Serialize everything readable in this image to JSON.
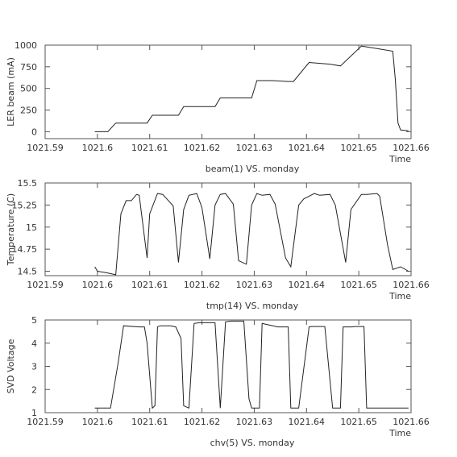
{
  "chart_data": [
    {
      "type": "line",
      "title": "",
      "xlabel": "Time",
      "ylabel": "LER beam (mA)",
      "caption": "beam(1) VS. monday",
      "xlim": [
        1021.59,
        1021.66
      ],
      "ylim": [
        -80,
        1000
      ],
      "xticks": [
        1021.59,
        1021.6,
        1021.61,
        1021.62,
        1021.63,
        1021.64,
        1021.65,
        1021.66
      ],
      "xtick_labels": [
        "1021.59",
        "1021.6",
        "1021.61",
        "1021.62",
        "1021.63",
        "1021.64",
        "1021.65",
        "1021.66"
      ],
      "yticks": [
        0,
        250,
        500,
        750,
        1000
      ],
      "ytick_labels": [
        "0",
        "250",
        "500",
        "750",
        "1000"
      ],
      "grid": false,
      "series": [
        {
          "x": [
            1021.5995,
            1021.601,
            1021.602,
            1021.6035,
            1021.6065,
            1021.6095,
            1021.6105,
            1021.613,
            1021.6155,
            1021.6165,
            1021.6195,
            1021.6225,
            1021.6235,
            1021.6265,
            1021.6295,
            1021.6305,
            1021.6335,
            1021.6365,
            1021.6375,
            1021.6405,
            1021.6445,
            1021.6465,
            1021.6505,
            1021.6535,
            1021.6565,
            1021.657,
            1021.6575,
            1021.658,
            1021.6595
          ],
          "y": [
            0,
            0,
            0,
            100,
            100,
            100,
            190,
            190,
            190,
            290,
            290,
            290,
            390,
            390,
            390,
            590,
            590,
            580,
            580,
            800,
            780,
            760,
            990,
            960,
            930,
            600,
            100,
            20,
            10
          ]
        }
      ]
    },
    {
      "type": "line",
      "title": "",
      "xlabel": "Time",
      "ylabel": "Temperature (C)",
      "caption": "tmp(14) VS. monday",
      "xlim": [
        1021.59,
        1021.66
      ],
      "ylim": [
        14.45,
        15.5
      ],
      "xticks": [
        1021.59,
        1021.6,
        1021.61,
        1021.62,
        1021.63,
        1021.64,
        1021.65,
        1021.66
      ],
      "xtick_labels": [
        "1021.59",
        "1021.6",
        "1021.61",
        "1021.62",
        "1021.63",
        "1021.64",
        "1021.65",
        "1021.66"
      ],
      "yticks": [
        14.5,
        14.75,
        15,
        15.25,
        15.5
      ],
      "ytick_labels": [
        "14.5",
        "14.75",
        "15",
        "15.25",
        "15.5"
      ],
      "grid": false,
      "series": [
        {
          "x": [
            1021.5995,
            1021.6,
            1021.602,
            1021.6035,
            1021.6045,
            1021.6055,
            1021.6065,
            1021.6075,
            1021.608,
            1021.6095,
            1021.61,
            1021.6115,
            1021.6125,
            1021.6145,
            1021.6155,
            1021.6165,
            1021.6175,
            1021.619,
            1021.62,
            1021.6215,
            1021.6225,
            1021.6235,
            1021.6245,
            1021.626,
            1021.627,
            1021.6285,
            1021.6295,
            1021.6305,
            1021.6315,
            1021.633,
            1021.634,
            1021.636,
            1021.637,
            1021.6385,
            1021.6395,
            1021.6415,
            1021.6425,
            1021.6445,
            1021.6455,
            1021.6475,
            1021.6485,
            1021.6505,
            1021.6515,
            1021.6535,
            1021.654,
            1021.6555,
            1021.6565,
            1021.658,
            1021.6595
          ],
          "y": [
            14.55,
            14.5,
            14.48,
            14.46,
            15.15,
            15.3,
            15.3,
            15.37,
            15.36,
            14.65,
            15.15,
            15.38,
            15.37,
            15.24,
            14.6,
            15.2,
            15.36,
            15.38,
            15.22,
            14.64,
            15.25,
            15.37,
            15.38,
            15.26,
            14.62,
            14.58,
            15.25,
            15.38,
            15.36,
            15.37,
            15.26,
            14.65,
            14.55,
            15.25,
            15.32,
            15.38,
            15.36,
            15.37,
            15.25,
            14.6,
            15.2,
            15.37,
            15.37,
            15.38,
            15.35,
            14.8,
            14.52,
            14.55,
            14.5
          ]
        }
      ]
    },
    {
      "type": "line",
      "title": "",
      "xlabel": "Time",
      "ylabel": "SVD Voltage",
      "caption": "chv(5) VS. monday",
      "xlim": [
        1021.59,
        1021.66
      ],
      "ylim": [
        1,
        5
      ],
      "xticks": [
        1021.59,
        1021.6,
        1021.61,
        1021.62,
        1021.63,
        1021.64,
        1021.65,
        1021.66
      ],
      "xtick_labels": [
        "1021.59",
        "1021.6",
        "1021.61",
        "1021.62",
        "1021.63",
        "1021.64",
        "1021.65",
        "1021.66"
      ],
      "yticks": [
        1,
        2,
        3,
        4,
        5
      ],
      "ytick_labels": [
        "1",
        "2",
        "3",
        "4",
        "5"
      ],
      "grid": false,
      "series": [
        {
          "x": [
            1021.5995,
            1021.6025,
            1021.604,
            1021.605,
            1021.608,
            1021.609,
            1021.6095,
            1021.6105,
            1021.611,
            1021.6115,
            1021.612,
            1021.614,
            1021.615,
            1021.616,
            1021.6165,
            1021.6175,
            1021.6185,
            1021.6195,
            1021.622,
            1021.6225,
            1021.6235,
            1021.6245,
            1021.6255,
            1021.628,
            1021.629,
            1021.6295,
            1021.6305,
            1021.631,
            1021.6315,
            1021.6345,
            1021.635,
            1021.6365,
            1021.637,
            1021.6385,
            1021.6405,
            1021.641,
            1021.643,
            1021.6435,
            1021.645,
            1021.6465,
            1021.647,
            1021.6485,
            1021.6495,
            1021.651,
            1021.6515,
            1021.6525,
            1021.6545,
            1021.6555,
            1021.657,
            1021.6595
          ],
          "y": [
            1.2,
            1.2,
            3.2,
            4.75,
            4.7,
            4.7,
            4.0,
            1.2,
            1.3,
            4.7,
            4.75,
            4.75,
            4.7,
            4.2,
            1.3,
            1.2,
            4.85,
            4.88,
            4.88,
            4.88,
            1.2,
            4.92,
            4.95,
            4.95,
            1.6,
            1.2,
            1.2,
            1.2,
            4.85,
            4.7,
            4.7,
            4.7,
            1.2,
            1.2,
            4.7,
            4.72,
            4.72,
            4.72,
            1.2,
            1.2,
            4.7,
            4.7,
            4.72,
            4.72,
            1.2,
            1.2,
            1.2,
            1.2,
            1.2,
            1.2
          ]
        }
      ]
    }
  ]
}
